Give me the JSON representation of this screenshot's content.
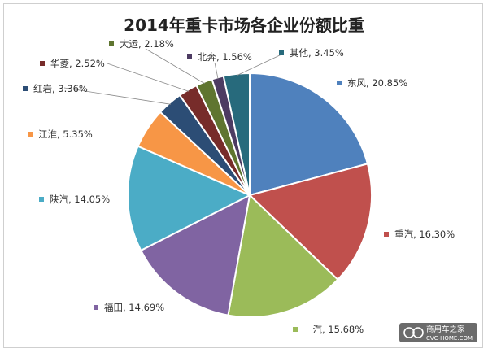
{
  "chart_data": {
    "type": "pie",
    "title": "2014年重卡市场各企业份额比重",
    "slices": [
      {
        "name": "东风",
        "value": 20.85,
        "label": "20.85%",
        "color": "#4f81bd"
      },
      {
        "name": "重汽",
        "value": 16.3,
        "label": "16.30%",
        "color": "#c0504d"
      },
      {
        "name": "一汽",
        "value": 15.68,
        "label": "15.68%",
        "color": "#9bbb59"
      },
      {
        "name": "福田",
        "value": 14.69,
        "label": "14.69%",
        "color": "#8064a2"
      },
      {
        "name": "陕汽",
        "value": 14.05,
        "label": "14.05%",
        "color": "#4bacc6"
      },
      {
        "name": "江淮",
        "value": 5.35,
        "label": "5.35%",
        "color": "#f79646"
      },
      {
        "name": "红岩",
        "value": 3.36,
        "label": "3.36%",
        "color": "#2c4d75"
      },
      {
        "name": "华菱",
        "value": 2.52,
        "label": "2.52%",
        "color": "#772c2a"
      },
      {
        "name": "大运",
        "value": 2.18,
        "label": "2.18%",
        "color": "#5f7530"
      },
      {
        "name": "北奔",
        "value": 1.56,
        "label": "1.56%",
        "color": "#4d3b62"
      },
      {
        "name": "其他",
        "value": 3.45,
        "label": "3.45%",
        "color": "#276a7c"
      }
    ]
  },
  "watermark": {
    "text": "商用车之家",
    "url_text": "CVC-HOME.COM"
  }
}
